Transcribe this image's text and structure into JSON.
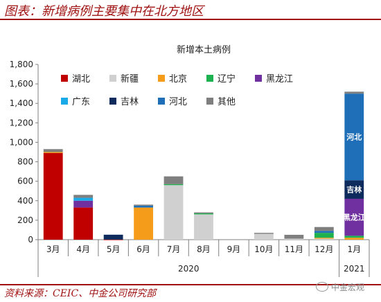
{
  "header": {
    "title": "图表：新增病例主要集中在北方地区"
  },
  "footer": {
    "source": "资料来源：CEIC、中金公司研究部"
  },
  "watermark": {
    "text": "中金宏观"
  },
  "chart_data": {
    "type": "bar",
    "title": "新增本土病例",
    "stacked": true,
    "ylim": [
      0,
      1800
    ],
    "yticks": [
      "0",
      "200",
      "400",
      "600",
      "800",
      "1,000",
      "1,200",
      "1,400",
      "1,600",
      "1,800"
    ],
    "categories": [
      "3月",
      "4月",
      "5月",
      "6月",
      "7月",
      "8月",
      "9月",
      "10月",
      "11月",
      "12月",
      "1月"
    ],
    "year_groups": [
      {
        "label": "2020",
        "from": 0,
        "to": 9
      },
      {
        "label": "2021",
        "from": 10,
        "to": 10
      }
    ],
    "grid": false,
    "legend": "top-left",
    "series": [
      {
        "name": "湖北",
        "color": "#c00000",
        "values": [
          890,
          330,
          1,
          0,
          0,
          0,
          0,
          0,
          0,
          0,
          0
        ]
      },
      {
        "name": "新疆",
        "color": "#d0d0d0",
        "values": [
          0,
          0,
          0,
          0,
          560,
          260,
          0,
          60,
          10,
          10,
          0
        ]
      },
      {
        "name": "北京",
        "color": "#f59d1a",
        "values": [
          10,
          0,
          0,
          330,
          0,
          0,
          0,
          0,
          0,
          10,
          20
        ]
      },
      {
        "name": "辽宁",
        "color": "#1db14f",
        "values": [
          0,
          0,
          0,
          0,
          10,
          10,
          0,
          0,
          0,
          50,
          20
        ]
      },
      {
        "name": "黑龙江",
        "color": "#7030a0",
        "values": [
          0,
          70,
          0,
          0,
          0,
          0,
          0,
          0,
          0,
          0,
          380
        ]
      },
      {
        "name": "广东",
        "color": "#1aaae8",
        "values": [
          0,
          30,
          0,
          0,
          0,
          0,
          0,
          0,
          0,
          0,
          0
        ]
      },
      {
        "name": "吉林",
        "color": "#0d2b5c",
        "values": [
          0,
          0,
          50,
          0,
          0,
          0,
          0,
          0,
          0,
          0,
          190
        ]
      },
      {
        "name": "河北",
        "color": "#1f6fb8",
        "values": [
          0,
          0,
          0,
          20,
          0,
          0,
          0,
          0,
          0,
          20,
          890
        ]
      },
      {
        "name": "其他",
        "color": "#7f7f7f",
        "values": [
          30,
          30,
          0,
          10,
          80,
          10,
          0,
          10,
          40,
          40,
          20
        ]
      }
    ],
    "bar_labels": [
      {
        "category": 10,
        "series": "河北",
        "text": "河北"
      },
      {
        "category": 10,
        "series": "吉林",
        "text": "吉林"
      },
      {
        "category": 10,
        "series": "黑龙江",
        "text": "黑龙江"
      }
    ]
  }
}
